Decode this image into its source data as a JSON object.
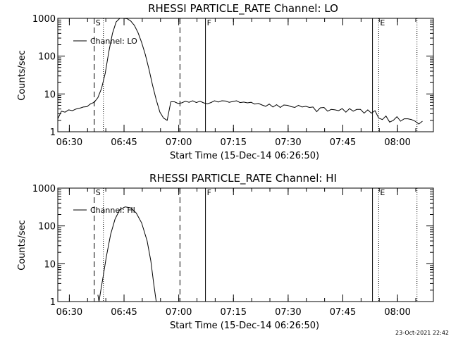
{
  "chart_data": [
    {
      "type": "line",
      "title": "RHESSI PARTICLE_RATE Channel: LO",
      "xlabel": "Start Time (15-Dec-14 06:26:50)",
      "ylabel": "Counts/sec",
      "yscale": "log",
      "ylim": [
        1,
        1000
      ],
      "xlim_minutes": [
        0,
        103
      ],
      "x_tick_minutes": [
        3.17,
        18.17,
        33.17,
        48.17,
        63.17,
        78.17,
        93.17
      ],
      "x_tick_labels": [
        "06:30",
        "06:45",
        "07:00",
        "07:15",
        "07:30",
        "07:45",
        "08:00"
      ],
      "y_tick_values": [
        1,
        10,
        100,
        1000
      ],
      "y_tick_labels": [
        "1",
        "10",
        "100",
        "1000"
      ],
      "legend": [
        "Channel: LO"
      ],
      "markers": [
        {
          "label": "S",
          "minute": 10.0,
          "style": "dashed"
        },
        {
          "label": "",
          "minute": 12.5,
          "style": "dotted"
        },
        {
          "label": "",
          "minute": 33.5,
          "style": "dashed"
        },
        {
          "label": "F",
          "minute": 40.5,
          "style": "solid"
        },
        {
          "label": "",
          "minute": 86.3,
          "style": "solid"
        },
        {
          "label": "E",
          "minute": 88.0,
          "style": "dotted"
        },
        {
          "label": "",
          "minute": 98.5,
          "style": "dotted"
        }
      ],
      "series": [
        {
          "name": "Channel: LO",
          "x": [
            0,
            1,
            2,
            3,
            4,
            5,
            6,
            7,
            8,
            9,
            10,
            11,
            12,
            13,
            14,
            15,
            16,
            17,
            18,
            19,
            20,
            21,
            22,
            23,
            24,
            25,
            26,
            27,
            28,
            29,
            30,
            31,
            32,
            33,
            34,
            35,
            36,
            37,
            38,
            39,
            40,
            41,
            42,
            43,
            44,
            45,
            46,
            47,
            48,
            49,
            50,
            51,
            52,
            53,
            54,
            55,
            56,
            57,
            58,
            59,
            60,
            61,
            62,
            63,
            64,
            65,
            66,
            67,
            68,
            69,
            70,
            71,
            72,
            73,
            74,
            75,
            76,
            77,
            78,
            79,
            80,
            81,
            82,
            83,
            84,
            85,
            86,
            87,
            88,
            89,
            90,
            91,
            92,
            93,
            94,
            95,
            96,
            97,
            98,
            99,
            100
          ],
          "y": [
            2.2,
            3.5,
            3.3,
            3.8,
            3.6,
            4,
            4.2,
            4.5,
            4.6,
            5.5,
            6,
            8,
            14,
            35,
            130,
            400,
            800,
            1050,
            1050,
            980,
            850,
            650,
            420,
            230,
            110,
            45,
            17,
            7,
            3.3,
            2.3,
            2,
            6.2,
            6.2,
            5.6,
            5.8,
            6.4,
            6,
            6.6,
            5.9,
            6.4,
            5.8,
            5.5,
            5.9,
            6.6,
            6.1,
            6.6,
            6.5,
            6,
            6.3,
            6.6,
            5.9,
            6.1,
            5.8,
            6,
            5.4,
            5.6,
            5.1,
            4.7,
            5.4,
            4.5,
            5.2,
            4.4,
            5.1,
            5,
            4.6,
            4.4,
            5,
            4.5,
            4.7,
            4.4,
            4.5,
            3.4,
            4.3,
            4.4,
            3.5,
            3.9,
            3.8,
            3.6,
            4.1,
            3.3,
            4.1,
            3.5,
            3.9,
            3.9,
            3.1,
            3.8,
            3.1,
            3.6,
            2.3,
            2.1,
            2.6,
            1.8,
            2,
            2.5,
            1.9,
            2.2,
            2.2,
            2.1,
            1.9,
            1.6,
            1.9
          ]
        }
      ]
    },
    {
      "type": "line",
      "title": "RHESSI PARTICLE_RATE Channel: HI",
      "xlabel": "Start Time (15-Dec-14 06:26:50)",
      "ylabel": "Counts/sec",
      "yscale": "log",
      "ylim": [
        1,
        1000
      ],
      "xlim_minutes": [
        0,
        103
      ],
      "x_tick_minutes": [
        3.17,
        18.17,
        33.17,
        48.17,
        63.17,
        78.17,
        93.17
      ],
      "x_tick_labels": [
        "06:30",
        "06:45",
        "07:00",
        "07:15",
        "07:30",
        "07:45",
        "08:00"
      ],
      "y_tick_values": [
        1,
        10,
        100,
        1000
      ],
      "y_tick_labels": [
        "1",
        "10",
        "100",
        "1000"
      ],
      "legend": [
        "Channel: HI"
      ],
      "markers": [
        {
          "label": "S",
          "minute": 10.0,
          "style": "dashed"
        },
        {
          "label": "",
          "minute": 12.5,
          "style": "dotted"
        },
        {
          "label": "",
          "minute": 33.5,
          "style": "dashed"
        },
        {
          "label": "F",
          "minute": 40.5,
          "style": "solid"
        },
        {
          "label": "",
          "minute": 86.3,
          "style": "solid"
        },
        {
          "label": "E",
          "minute": 88.0,
          "style": "dotted"
        },
        {
          "label": "",
          "minute": 98.5,
          "style": "dotted"
        }
      ],
      "series": [
        {
          "name": "Channel: HI",
          "x": [
            11.0,
            11.3,
            11.8,
            12.5,
            13.3,
            14.5,
            15.7,
            17,
            18.5,
            20,
            21.5,
            23,
            24.5,
            25.5,
            26.3,
            27
          ],
          "y": [
            1.5,
            1.0,
            2.0,
            5,
            15,
            60,
            150,
            270,
            320,
            300,
            220,
            120,
            40,
            12,
            3,
            1
          ]
        }
      ]
    }
  ],
  "footer": {
    "timestamp": "23-Oct-2021 22:42"
  }
}
